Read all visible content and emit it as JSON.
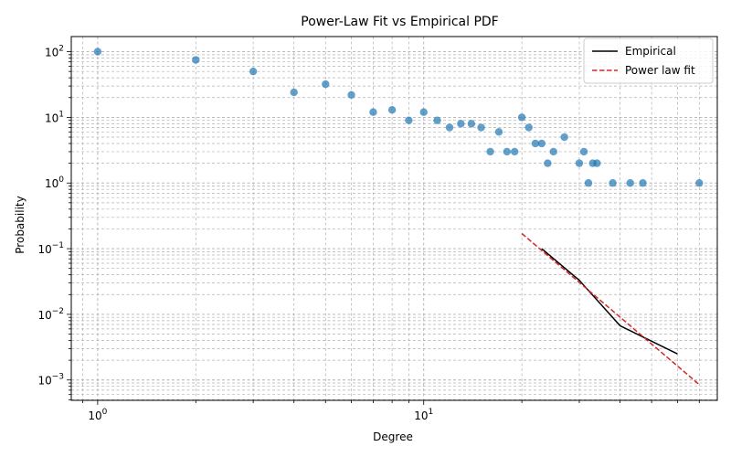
{
  "chart_data": {
    "type": "scatter",
    "title": "Power-Law Fit vs Empirical PDF",
    "xlabel": "Degree",
    "ylabel": "Probability",
    "xscale": "log",
    "yscale": "log",
    "xlim": [
      0.83,
      79.5
    ],
    "ylim": [
      0.00049,
      170
    ],
    "grid": true,
    "legend_position": "top-right",
    "x_ticks": [
      {
        "value": 1,
        "base": "10",
        "exp": "0"
      },
      {
        "value": 10,
        "base": "10",
        "exp": "1"
      }
    ],
    "y_ticks": [
      {
        "value": 0.001,
        "base": "10",
        "exp": "−3"
      },
      {
        "value": 0.01,
        "base": "10",
        "exp": "−2"
      },
      {
        "value": 0.1,
        "base": "10",
        "exp": "−1"
      },
      {
        "value": 1,
        "base": "10",
        "exp": "0"
      },
      {
        "value": 10,
        "base": "10",
        "exp": "1"
      },
      {
        "value": 100,
        "base": "10",
        "exp": "2"
      }
    ],
    "scatter": {
      "color": "#1f77b4",
      "points": [
        [
          1,
          100
        ],
        [
          2,
          75
        ],
        [
          3,
          50
        ],
        [
          4,
          24
        ],
        [
          5,
          32
        ],
        [
          6,
          22
        ],
        [
          7,
          12
        ],
        [
          8,
          13
        ],
        [
          9,
          9
        ],
        [
          10,
          12
        ],
        [
          11,
          9
        ],
        [
          12,
          7
        ],
        [
          13,
          8
        ],
        [
          14,
          8
        ],
        [
          15,
          7
        ],
        [
          16,
          3
        ],
        [
          17,
          6
        ],
        [
          18,
          3
        ],
        [
          19,
          3
        ],
        [
          20,
          10
        ],
        [
          21,
          7
        ],
        [
          22,
          4
        ],
        [
          23,
          4
        ],
        [
          24,
          2
        ],
        [
          25,
          3
        ],
        [
          27,
          5
        ],
        [
          30,
          2
        ],
        [
          31,
          3
        ],
        [
          32,
          1
        ],
        [
          33,
          2
        ],
        [
          34,
          2
        ],
        [
          38,
          1
        ],
        [
          43,
          1
        ],
        [
          47,
          1
        ],
        [
          70,
          1
        ]
      ]
    },
    "series": [
      {
        "name": "Empirical",
        "color": "#000000",
        "style": "solid",
        "points": [
          [
            23,
            0.1
          ],
          [
            30,
            0.033
          ],
          [
            40,
            0.0067
          ],
          [
            60,
            0.0025
          ]
        ]
      },
      {
        "name": "Power law fit",
        "color": "#d62728",
        "style": "dashed",
        "points": [
          [
            20,
            0.17
          ],
          [
            70,
            0.00085
          ]
        ]
      }
    ]
  }
}
